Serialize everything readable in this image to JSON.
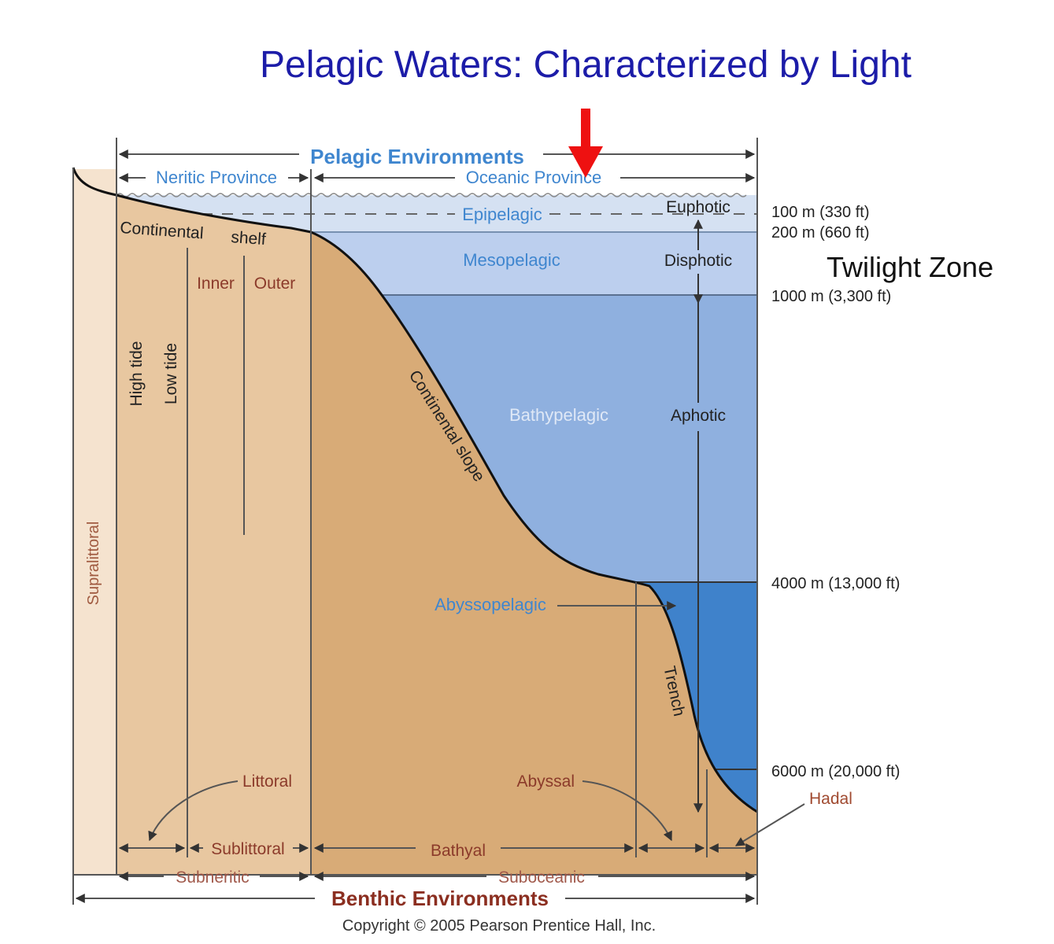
{
  "title": "Pelagic Waters: Characterized by Light",
  "colors": {
    "title": "#1c1ca8",
    "highlight_arrow": "#ee1111",
    "supralittoral": "#f5e3cf",
    "shelf": "#e8c7a0",
    "seafloor": "#d8ab77",
    "epipelagic": "#d5e1f2",
    "mesopelagic": "#bccfee",
    "bathypelagic": "#8fb0df",
    "abyssopelagic": "#3f82cb"
  },
  "highlight_arrow_icon": "red-down-arrow",
  "pelagic": {
    "heading": "Pelagic Environments",
    "neritic": "Neritic Province",
    "oceanic": "Oceanic Province"
  },
  "zones": {
    "epipelagic": "Epipelagic",
    "mesopelagic": "Mesopelagic",
    "bathypelagic": "Bathypelagic",
    "abyssopelagic": "Abyssopelagic"
  },
  "light": {
    "euphotic": "Euphotic",
    "disphotic": "Disphotic",
    "aphotic": "Aphotic",
    "twilight": "Twilight Zone"
  },
  "depths": [
    "100 m (330 ft)",
    "200 m (660 ft)",
    "1000 m (3,300 ft)",
    "4000 m (13,000 ft)",
    "6000 m (20,000 ft)"
  ],
  "landforms": {
    "shelf_1": "Continental",
    "shelf_2": "shelf",
    "inner": "Inner",
    "outer": "Outer",
    "high_tide": "High tide",
    "low_tide": "Low tide",
    "supralittoral": "Supralittoral",
    "slope": "Continental slope",
    "trench": "Trench"
  },
  "benthic": {
    "littoral": "Littoral",
    "sublittoral": "Sublittoral",
    "bathyal": "Bathyal",
    "abyssal": "Abyssal",
    "hadal": "Hadal",
    "subneritic": "Subneritic",
    "suboceanic": "Suboceanic",
    "heading": "Benthic Environments"
  },
  "copyright": "Copyright © 2005 Pearson Prentice Hall, Inc."
}
